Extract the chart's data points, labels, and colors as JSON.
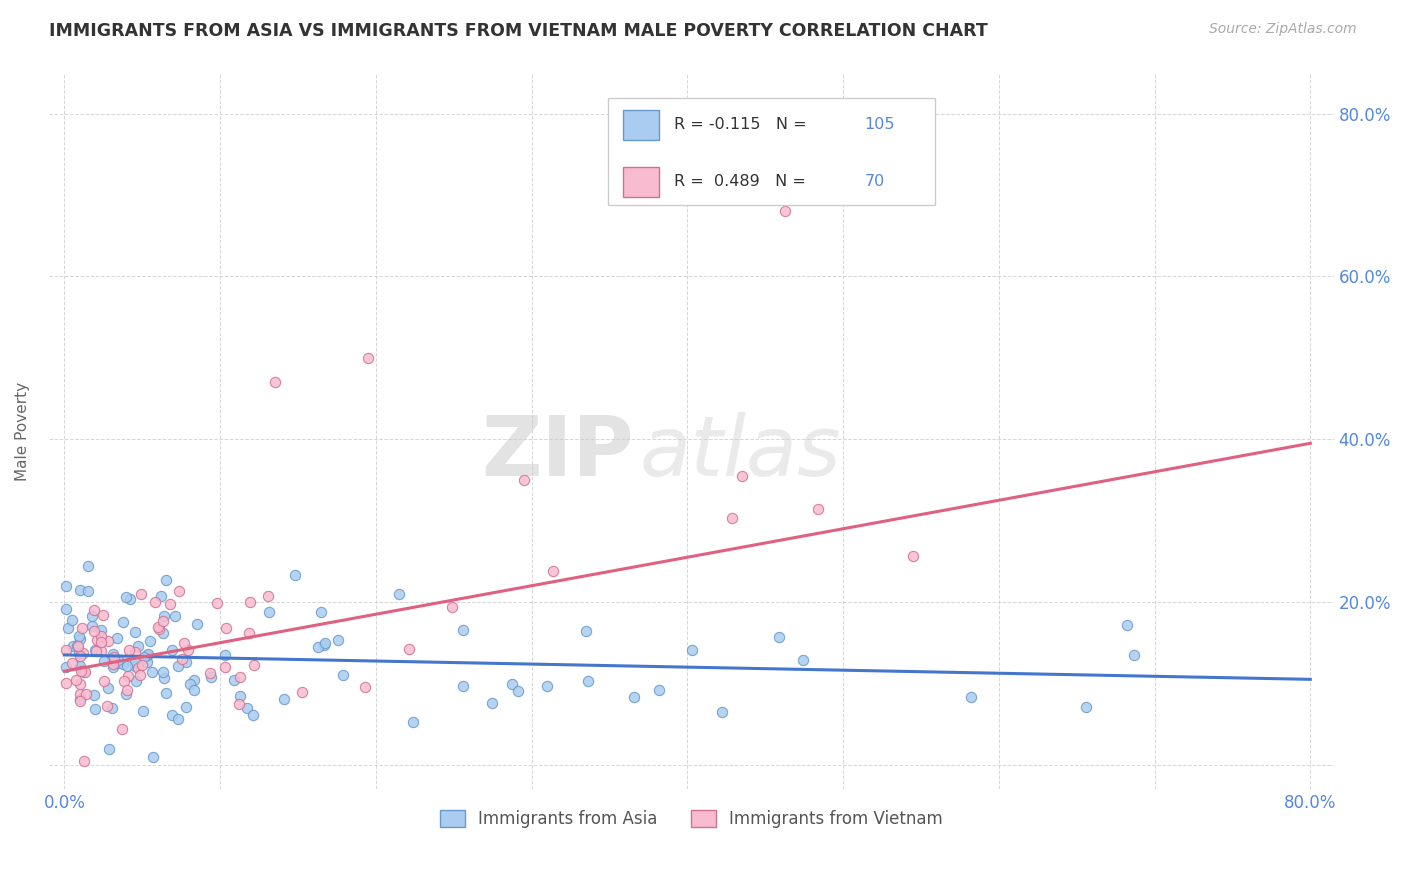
{
  "title": "IMMIGRANTS FROM ASIA VS IMMIGRANTS FROM VIETNAM MALE POVERTY CORRELATION CHART",
  "source_text": "Source: ZipAtlas.com",
  "ylabel": "Male Poverty",
  "x_min": 0.0,
  "x_max": 0.8,
  "y_min": -0.03,
  "y_max": 0.85,
  "x_ticks": [
    0.0,
    0.1,
    0.2,
    0.3,
    0.4,
    0.5,
    0.6,
    0.7,
    0.8
  ],
  "y_ticks": [
    0.0,
    0.2,
    0.4,
    0.6,
    0.8
  ],
  "y_tick_labels": [
    "",
    "20.0%",
    "40.0%",
    "60.0%",
    "80.0%"
  ],
  "asia_color": "#aaccf0",
  "asia_edge_color": "#6699cc",
  "vietnam_color": "#f8bbd0",
  "vietnam_edge_color": "#d07090",
  "trend_asia_color": "#4477cc",
  "trend_vietnam_color": "#e06080",
  "legend_label1": "Immigrants from Asia",
  "legend_label2": "Immigrants from Vietnam",
  "watermark_zip": "ZIP",
  "watermark_atlas": "atlas",
  "R_asia": -0.115,
  "R_vietnam": 0.489,
  "N_asia": 105,
  "N_vietnam": 70,
  "title_color": "#333333",
  "tick_label_color": "#5588dd",
  "grid_color": "#cccccc",
  "background_color": "#ffffff",
  "legend_text_color": "#5588dd",
  "legend_R_color": "#333333",
  "asia_trend_start_y": 0.135,
  "asia_trend_end_y": 0.105,
  "vietnam_trend_start_y": 0.115,
  "vietnam_trend_end_y": 0.395
}
